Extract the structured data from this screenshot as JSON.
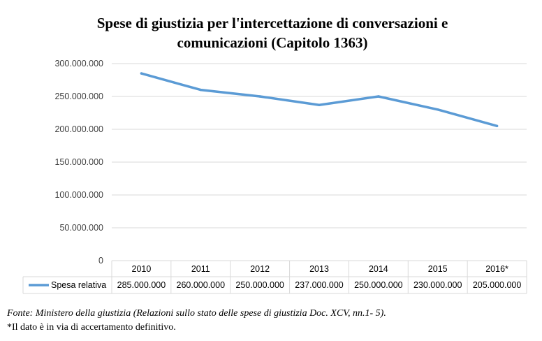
{
  "chart_data": {
    "type": "line",
    "title": "Spese di giustizia per l'intercettazione di conversazioni e comunicazioni (Capitolo 1363)",
    "title_lines": [
      "Spese di giustizia per l'intercettazione di conversazioni e",
      "comunicazioni (Capitolo 1363)"
    ],
    "categories": [
      "2010",
      "2011",
      "2012",
      "2013",
      "2014",
      "2015",
      "2016*"
    ],
    "y_ticks": [
      "0",
      "50.000.000",
      "100.000.000",
      "150.000.000",
      "200.000.000",
      "250.000.000",
      "300.000.000"
    ],
    "ylim": [
      0,
      300000000
    ],
    "grid": true,
    "legend": "data-table",
    "series": [
      {
        "name": "Spesa relativa",
        "color": "#5b9bd5",
        "values": [
          285000000,
          260000000,
          250000000,
          237000000,
          250000000,
          230000000,
          205000000
        ],
        "value_labels": [
          "285.000.000",
          "260.000.000",
          "250.000.000",
          "237.000.000",
          "250.000.000",
          "230.000.000",
          "205.000.000"
        ]
      }
    ]
  },
  "footnotes": {
    "source": "Fonte: Ministero della giustizia (Relazioni sullo stato delle spese di giustizia Doc. XCV, nn.1- 5).",
    "note": "*Il dato è in via di accertamento definitivo."
  }
}
